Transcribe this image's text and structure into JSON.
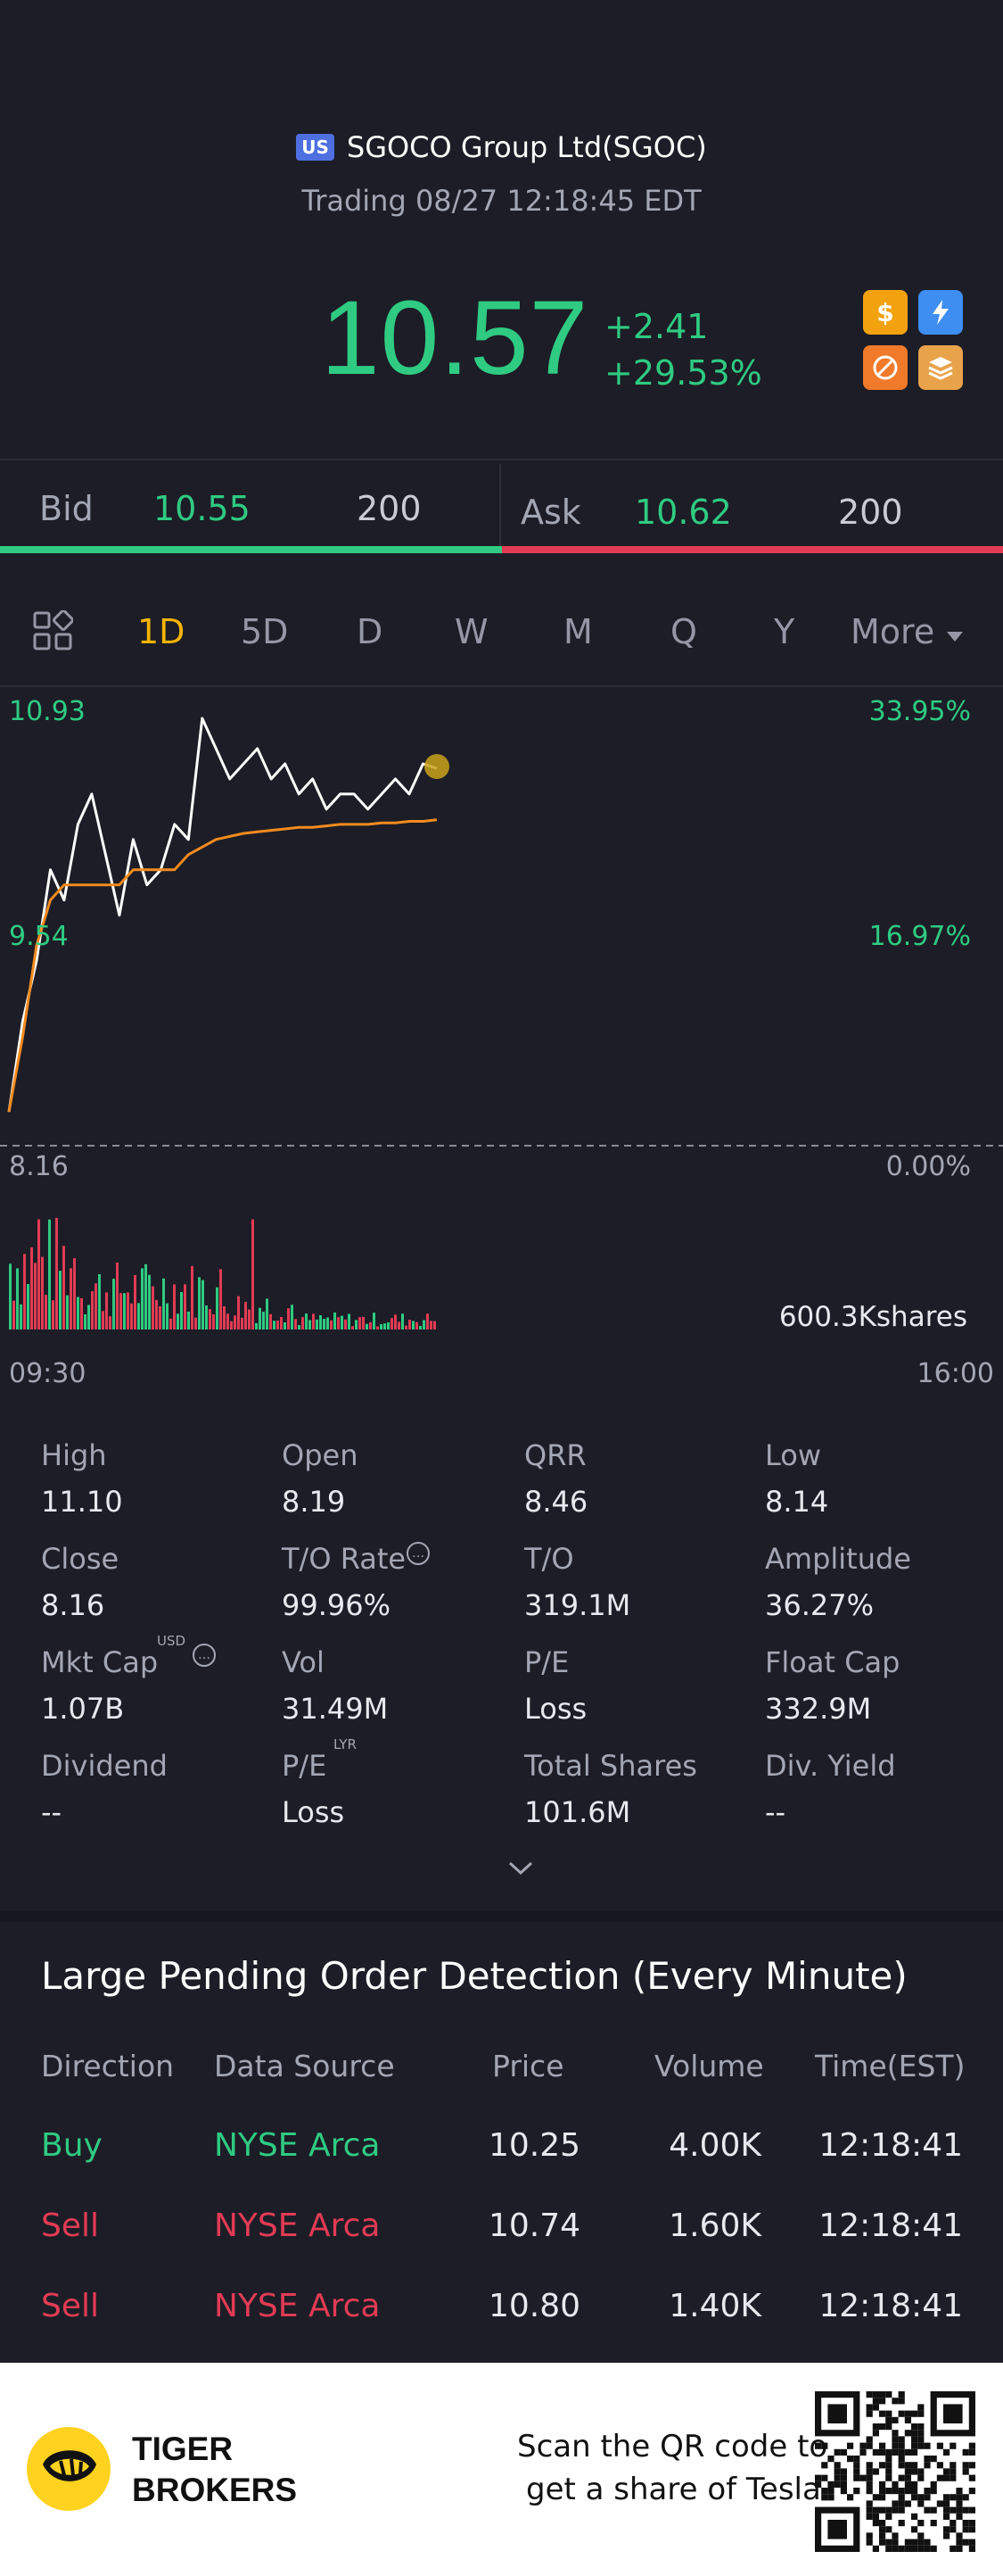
{
  "header": {
    "market_badge": "US",
    "stock_name": "SGOCO Group Ltd(SGOC)",
    "trading_status": "Trading 08/27 12:18:45 EDT",
    "price": "10.57",
    "change": "+2.41",
    "change_pct": "+29.53%",
    "feature_icons": [
      "dollar-icon",
      "lightning-icon",
      "no-short-icon",
      "stack-icon"
    ]
  },
  "quote": {
    "bid_label": "Bid",
    "bid_price": "10.55",
    "bid_size": "200",
    "ask_label": "Ask",
    "ask_price": "10.62",
    "ask_size": "200",
    "bid_share": 0.5
  },
  "tabs": [
    "1D",
    "5D",
    "D",
    "W",
    "M",
    "Q",
    "Y",
    "More"
  ],
  "active_tab": "1D",
  "chart_data": {
    "type": "line",
    "price_axis": [
      "10.93",
      "9.54",
      "8.16"
    ],
    "pct_axis": [
      "33.95%",
      "16.97%",
      "0.00%"
    ],
    "time_axis": [
      "09:30",
      "16:00"
    ],
    "volume_label": "600.3Kshares",
    "series": [
      {
        "name": "Price",
        "color": "#ffffff",
        "values": [
          8.3,
          8.9,
          9.3,
          9.9,
          9.7,
          10.2,
          10.4,
          10.0,
          9.6,
          10.1,
          9.8,
          9.9,
          10.2,
          10.1,
          10.9,
          10.7,
          10.5,
          10.6,
          10.7,
          10.5,
          10.6,
          10.4,
          10.5,
          10.3,
          10.4,
          10.4,
          10.3,
          10.4,
          10.5,
          10.4,
          10.6,
          10.57
        ]
      },
      {
        "name": "Avg",
        "color": "#f38b1f",
        "values": [
          8.3,
          8.8,
          9.4,
          9.7,
          9.8,
          9.8,
          9.8,
          9.8,
          9.8,
          9.9,
          9.9,
          9.9,
          9.9,
          10.0,
          10.05,
          10.1,
          10.12,
          10.14,
          10.15,
          10.16,
          10.17,
          10.18,
          10.18,
          10.19,
          10.2,
          10.2,
          10.2,
          10.21,
          10.21,
          10.22,
          10.22,
          10.23
        ]
      }
    ],
    "ylim": [
      8.16,
      10.93
    ]
  },
  "stats": [
    {
      "label": "High",
      "value": "11.10"
    },
    {
      "label": "Open",
      "value": "8.19"
    },
    {
      "label": "QRR",
      "value": "8.46"
    },
    {
      "label": "Low",
      "value": "8.14"
    },
    {
      "label": "Close",
      "value": "8.16"
    },
    {
      "label": "T/O Rate",
      "value": "99.96%"
    },
    {
      "label": "T/O",
      "value": "319.1M"
    },
    {
      "label": "Amplitude",
      "value": "36.27%"
    },
    {
      "label": "Mkt Cap",
      "value": "1.07B"
    },
    {
      "label": "Vol",
      "value": "31.49M"
    },
    {
      "label": "P/E",
      "value": "Loss"
    },
    {
      "label": "Float Cap",
      "value": "332.9M"
    },
    {
      "label": "Dividend",
      "value": "--"
    },
    {
      "label": "P/E",
      "value": "Loss"
    },
    {
      "label": "Total Shares",
      "value": "101.6M"
    },
    {
      "label": "Div. Yield",
      "value": "--"
    }
  ],
  "stat_tags": {
    "usd": "USD",
    "lyr": "LYR"
  },
  "large_orders": {
    "title": "Large Pending Order Detection (Every Minute)",
    "headers": [
      "Direction",
      "Data Source",
      "Price",
      "Volume",
      "Time(EST)"
    ],
    "rows": [
      {
        "direction": "Buy",
        "source": "NYSE Arca",
        "price": "10.25",
        "volume": "4.00K",
        "time": "12:18:41"
      },
      {
        "direction": "Sell",
        "source": "NYSE Arca",
        "price": "10.74",
        "volume": "1.60K",
        "time": "12:18:41"
      },
      {
        "direction": "Sell",
        "source": "NYSE Arca",
        "price": "10.80",
        "volume": "1.40K",
        "time": "12:18:41"
      }
    ]
  },
  "footer": {
    "brand_line1": "TIGER",
    "brand_line2": "BROKERS",
    "scan_line1": "Scan the QR code to",
    "scan_line2": "get a share of Tesla"
  },
  "colors": {
    "up": "#2fcb82",
    "down": "#e23b54",
    "accent": "#f5b400",
    "avg_line": "#f38b1f"
  }
}
